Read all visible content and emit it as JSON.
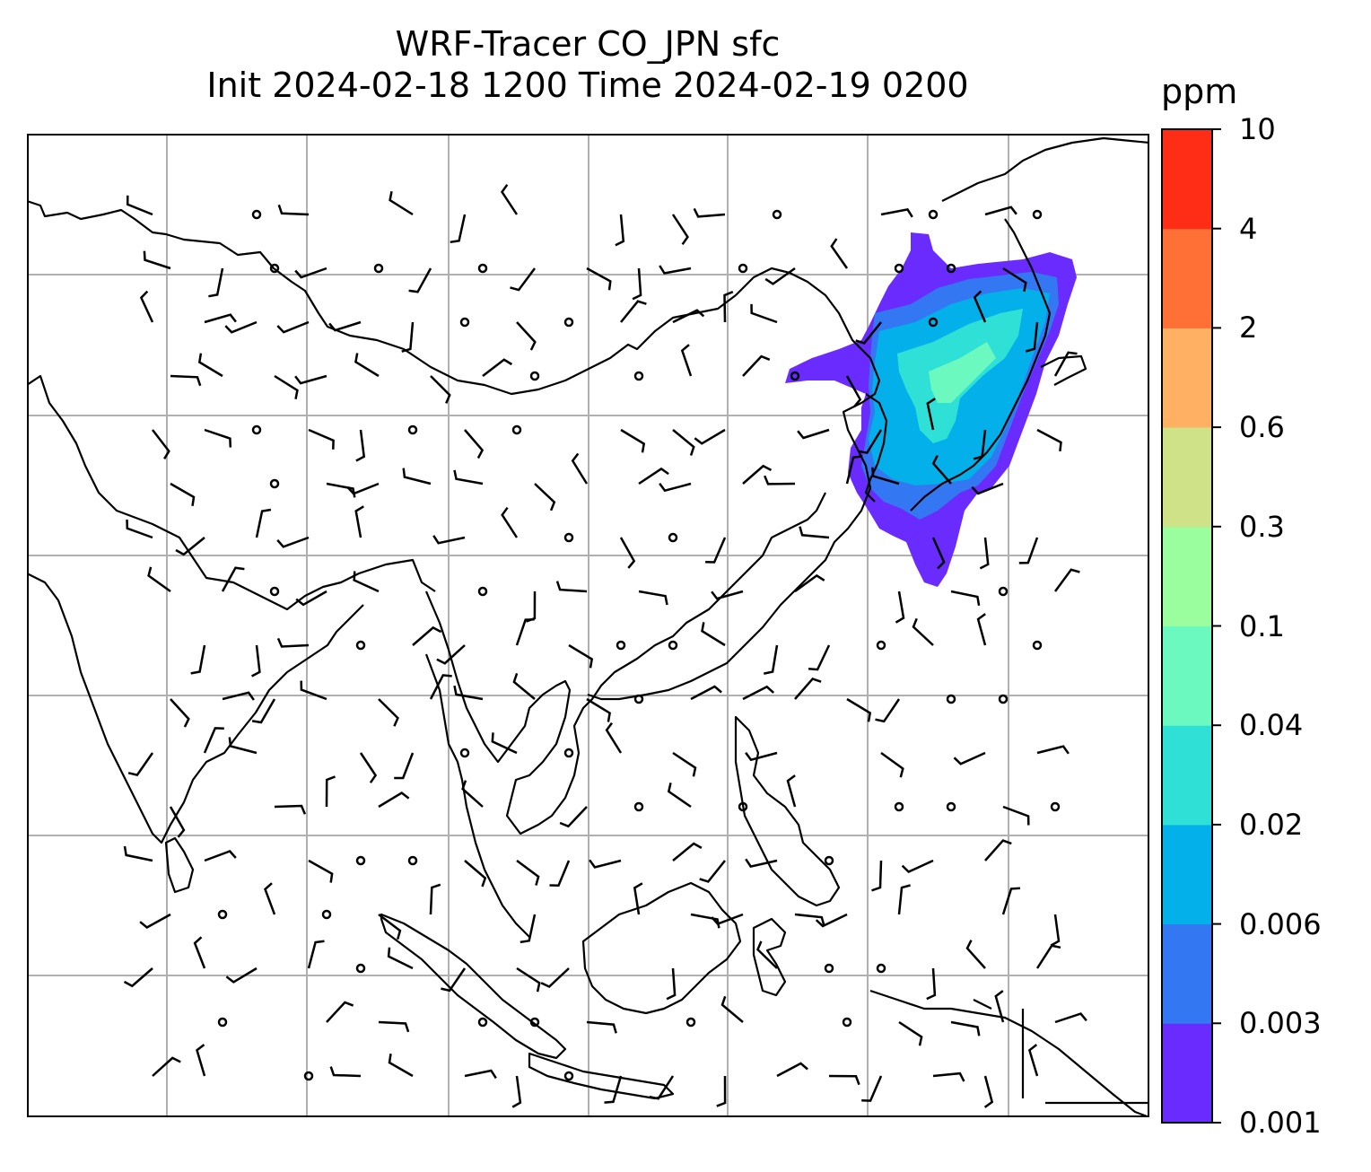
{
  "title": {
    "line1": "WRF-Tracer CO_JPN sfc",
    "line2": "Init 2024-02-18 1200 Time 2024-02-19 0200"
  },
  "colorbar": {
    "unit": "ppm",
    "levels": [
      "0.001",
      "0.003",
      "0.006",
      "0.02",
      "0.04",
      "0.1",
      "0.3",
      "0.6",
      "2",
      "4",
      "10"
    ],
    "colors": [
      "#6a2bff",
      "#3378f2",
      "#03b0ea",
      "#2fe0d6",
      "#6cf9bf",
      "#9afd9e",
      "#cfe288",
      "#ffb063",
      "#ff7036",
      "#ff2d16"
    ]
  },
  "map": {
    "region": "East and Southeast Asia",
    "tracer": "CO_JPN",
    "level": "sfc",
    "features": [
      "coastlines",
      "lat-lon gridlines",
      "wind barbs",
      "tracer concentration shading"
    ]
  }
}
